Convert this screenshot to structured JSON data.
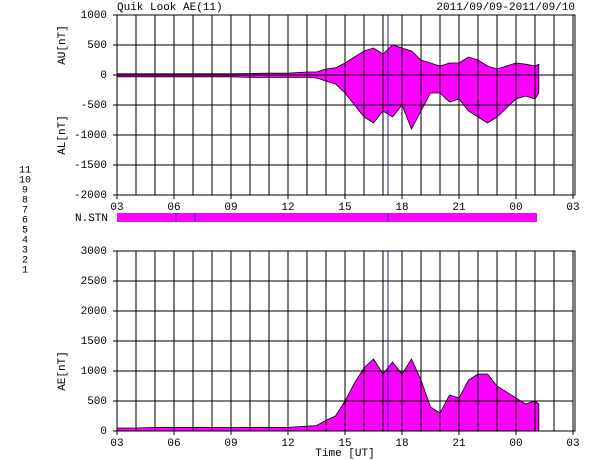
{
  "header": {
    "title": "Quik Look AE(11)",
    "period": "2011/09/09-2011/09/10"
  },
  "stations": [
    {
      "label": "11",
      "color": "#00e0e0"
    },
    {
      "label": "10",
      "color": "#ff00ff"
    },
    {
      "label": "9",
      "color": "#0000ff"
    },
    {
      "label": "8",
      "color": "#e0e000"
    },
    {
      "label": "7",
      "color": "#a0e040"
    },
    {
      "label": "6",
      "color": "#ff0000"
    },
    {
      "label": "5",
      "color": "#b0b0b0"
    },
    {
      "label": "4",
      "color": "#d0d0d0"
    },
    {
      "label": "3",
      "color": "#00a0a0"
    },
    {
      "label": "2",
      "color": "#a000a0"
    },
    {
      "label": "1",
      "color": "#0000c0"
    }
  ],
  "n_stn_label": "N.STN",
  "chart_data": [
    {
      "type": "area",
      "color": "#ff00ff",
      "x": [
        3,
        4,
        5,
        6,
        7,
        8,
        9,
        10,
        11,
        12,
        13,
        13.5,
        14,
        14.5,
        15,
        15.5,
        16,
        16.5,
        17,
        17.5,
        18,
        18.5,
        19,
        19.5,
        20,
        20.5,
        21,
        21.5,
        22,
        22.5,
        23,
        23.5,
        24,
        24.5,
        25,
        25.2
      ],
      "series": [
        {
          "name": "AU[nT]",
          "values": [
            20,
            20,
            20,
            20,
            20,
            20,
            20,
            25,
            30,
            30,
            50,
            50,
            100,
            120,
            200,
            300,
            400,
            450,
            350,
            500,
            450,
            400,
            250,
            200,
            150,
            200,
            200,
            300,
            250,
            150,
            100,
            150,
            200,
            180,
            150,
            180
          ]
        },
        {
          "name": "AL[nT]",
          "values": [
            -30,
            -30,
            -30,
            -30,
            -30,
            -30,
            -30,
            -40,
            -40,
            -40,
            -40,
            -50,
            -100,
            -150,
            -300,
            -500,
            -700,
            -800,
            -600,
            -700,
            -500,
            -900,
            -600,
            -300,
            -300,
            -450,
            -400,
            -600,
            -700,
            -800,
            -700,
            -550,
            -400,
            -350,
            -400,
            -300
          ]
        }
      ],
      "xlim": [
        3,
        27
      ],
      "xticks": [
        {
          "value": 3,
          "label": "03"
        },
        {
          "value": 6,
          "label": "06"
        },
        {
          "value": 9,
          "label": "09"
        },
        12,
        15,
        18,
        21,
        {
          "value": 24,
          "label": "00"
        },
        {
          "value": 27,
          "label": "03"
        }
      ],
      "ylim": [
        -2000,
        1000
      ],
      "yticks": [
        -2000,
        -1500,
        -1000,
        -500,
        0,
        500,
        1000
      ],
      "grid": true
    },
    {
      "type": "area",
      "color": "#ff00ff",
      "xlabel": "Time [UT]",
      "x": [
        3,
        4,
        5,
        6,
        7,
        8,
        9,
        10,
        11,
        12,
        13,
        13.5,
        14,
        14.5,
        15,
        15.5,
        16,
        16.5,
        17,
        17.5,
        18,
        18.5,
        19,
        19.5,
        20,
        20.5,
        21,
        21.5,
        22,
        22.5,
        23,
        23.5,
        24,
        24.5,
        25,
        25.2
      ],
      "series": [
        {
          "name": "AE[nT]",
          "values": [
            50,
            50,
            60,
            60,
            60,
            60,
            55,
            60,
            60,
            60,
            80,
            90,
            180,
            250,
            500,
            800,
            1050,
            1200,
            950,
            1150,
            950,
            1200,
            850,
            400,
            300,
            600,
            550,
            850,
            950,
            950,
            750,
            650,
            550,
            450,
            500,
            450
          ]
        }
      ],
      "xlim": [
        3,
        27
      ],
      "xticks": [
        {
          "value": 3,
          "label": "03"
        },
        {
          "value": 6,
          "label": "06"
        },
        {
          "value": 9,
          "label": "09"
        },
        12,
        15,
        18,
        21,
        {
          "value": 24,
          "label": "00"
        },
        {
          "value": 27,
          "label": "03"
        }
      ],
      "ylim": [
        0,
        3000
      ],
      "yticks": [
        0,
        500,
        1000,
        1500,
        2000,
        2500,
        3000
      ],
      "grid": true
    }
  ]
}
